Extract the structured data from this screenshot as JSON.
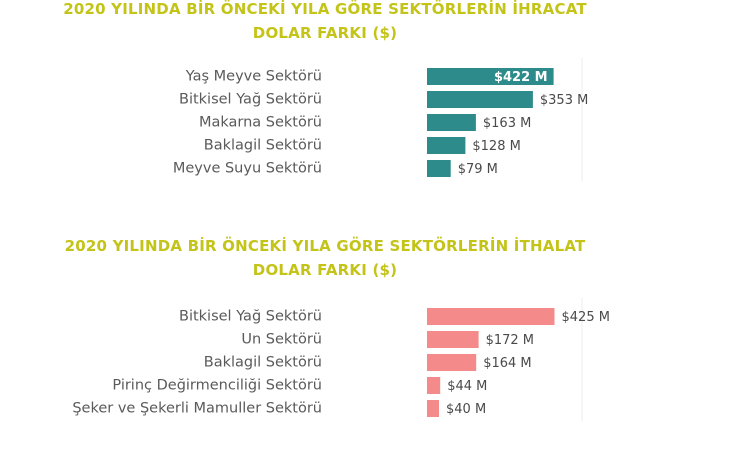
{
  "chart_data": [
    {
      "type": "bar",
      "orientation": "horizontal",
      "title": {
        "line1": "2020 YILINDA BİR ÖNCEKİ YILA GÖRE SEKTÖRLERİN İHRACAT",
        "line2": "DOLAR FARKI ($)"
      },
      "categories": [
        "Yaş Meyve Sektörü",
        "Bitkisel Yağ Sektörü",
        "Makarna Sektörü",
        "Baklagil Sektörü",
        "Meyve Suyu Sektörü"
      ],
      "values": [
        422,
        353,
        163,
        128,
        79
      ],
      "value_labels": [
        "$422 M",
        "$353 M",
        "$163 M",
        "$128 M",
        "$79 M"
      ],
      "color": "#2e8b8b",
      "xlim": [
        0,
        500
      ],
      "grid": false
    },
    {
      "type": "bar",
      "orientation": "horizontal",
      "title": {
        "line1": "2020 YILINDA BİR ÖNCEKİ YILA GÖRE SEKTÖRLERİN İTHALAT",
        "line2": "DOLAR FARKI ($)"
      },
      "categories": [
        "Bitkisel Yağ Sektörü",
        "Un Sektörü",
        "Baklagil Sektörü",
        "Pirinç Değirmenciliği Sektörü",
        "Şeker ve Şekerli Mamuller Sektörü"
      ],
      "values": [
        425,
        172,
        164,
        44,
        40
      ],
      "value_labels": [
        "$425 M",
        "$172 M",
        "$164 M",
        "$44 M",
        "$40 M"
      ],
      "color": "#f48a8a",
      "xlim": [
        0,
        500
      ],
      "grid": false
    }
  ]
}
